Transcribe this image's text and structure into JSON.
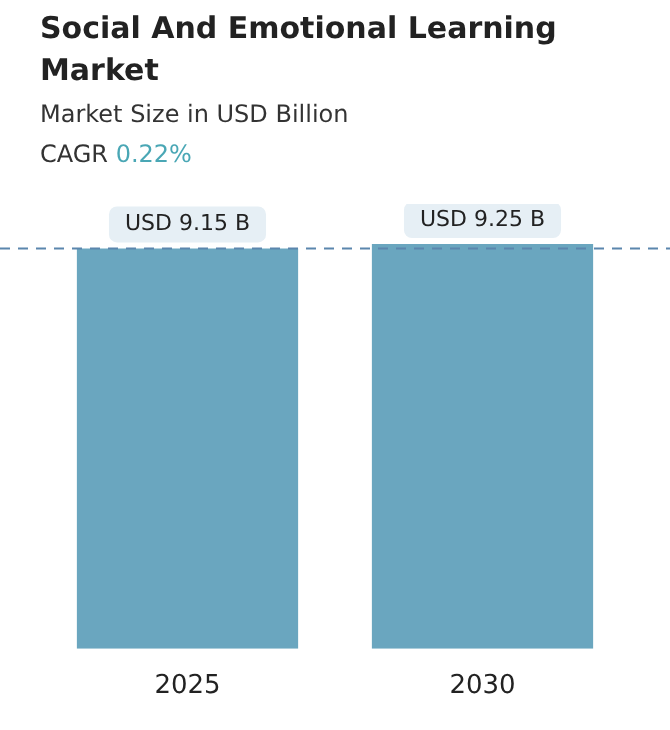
{
  "chart_data": {
    "type": "bar",
    "title": "Social And Emotional Learning Market",
    "subtitle": "Market Size in USD Billion",
    "annotations": [
      "CAGR 0.22%"
    ],
    "categories": [
      "2025",
      "2030"
    ],
    "values": [
      9.15,
      9.25
    ],
    "color": "#6aa6bf",
    "value_labels": [
      "USD 9.15 B",
      "USD 9.25 B"
    ],
    "ref_lines": [
      {
        "axis": "y",
        "value": 9.15,
        "color": "#5b86ad",
        "line_style": "dashed"
      }
    ],
    "legend": false
  }
}
